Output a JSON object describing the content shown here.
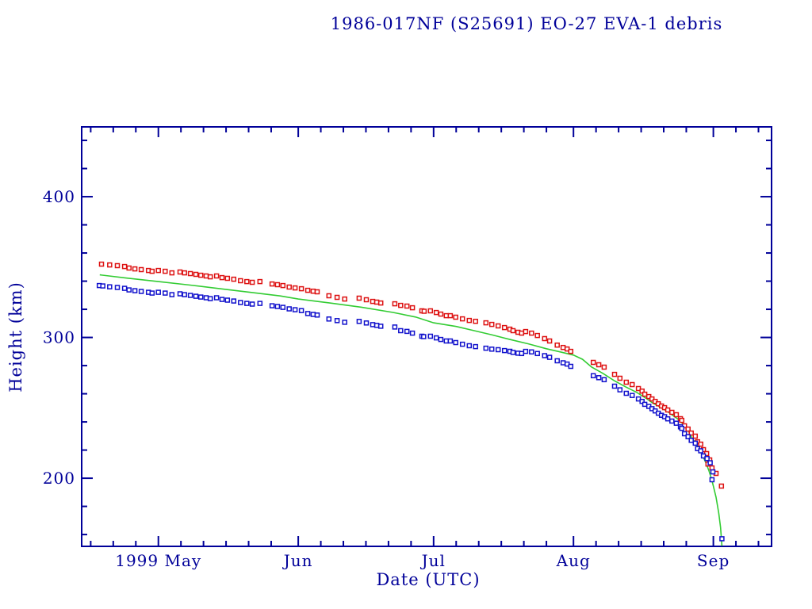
{
  "page": {
    "background": "#ffffff"
  },
  "header": {
    "title": "1986-017NF (S25691) EO-27 EVA-1 debris"
  },
  "chart_data": {
    "type": "scatter",
    "title": "1986-017NF (S25691) EO-27 EVA-1 debris",
    "xlabel": "Date (UTC)",
    "ylabel": "Height (km)",
    "grid": false,
    "legend": "none",
    "axis_color": "#000099",
    "background": "#ffffff",
    "x_axis": {
      "unit": "days since 1999 Apr 14 (UTC)",
      "range": [
        0,
        152.9
      ],
      "major_ticks": [
        {
          "day": 17,
          "label": "1999 May"
        },
        {
          "day": 48,
          "label": "Jun"
        },
        {
          "day": 78,
          "label": "Jul"
        },
        {
          "day": 109,
          "label": "Aug"
        },
        {
          "day": 140,
          "label": "Sep"
        }
      ],
      "minor_tick_days": [
        2,
        7,
        12,
        22,
        27,
        32,
        37,
        42,
        53,
        58,
        63,
        68,
        73,
        83,
        88,
        93,
        98,
        103,
        114,
        119,
        124,
        129,
        134,
        145,
        150
      ]
    },
    "y_axis": {
      "range": [
        151.6,
        449.6
      ],
      "major_ticks": [
        200,
        300,
        400
      ],
      "minor_ticks": [
        160,
        180,
        220,
        240,
        260,
        280,
        320,
        340,
        360,
        380,
        420,
        440
      ]
    },
    "series": [
      {
        "name": "green-line",
        "kind": "line",
        "color": "#33cc33",
        "points": [
          [
            4.0,
            344.5
          ],
          [
            10,
            342.2
          ],
          [
            17,
            339.7
          ],
          [
            24,
            337.2
          ],
          [
            31,
            334.5
          ],
          [
            38,
            331.8
          ],
          [
            44,
            329.5
          ],
          [
            48,
            327.3
          ],
          [
            55,
            324.5
          ],
          [
            62,
            321.5
          ],
          [
            69,
            317.8
          ],
          [
            74,
            314.5
          ],
          [
            78,
            310.4
          ],
          [
            83,
            307.8
          ],
          [
            87,
            304.8
          ],
          [
            91,
            301.8
          ],
          [
            95,
            298.5
          ],
          [
            99,
            295.5
          ],
          [
            103,
            292.0
          ],
          [
            106,
            289.8
          ],
          [
            109,
            287.5
          ],
          [
            111,
            284.5
          ],
          [
            113,
            279.0
          ],
          [
            115.5,
            274.5
          ],
          [
            118,
            269.4
          ],
          [
            120.5,
            265.0
          ],
          [
            123,
            261.0
          ],
          [
            125,
            257.0
          ],
          [
            126.5,
            253.5
          ],
          [
            128.5,
            250.0
          ],
          [
            130,
            247.0
          ],
          [
            131.5,
            243.5
          ],
          [
            132.5,
            241.2
          ],
          [
            133.5,
            237.5
          ],
          [
            134.5,
            233.5
          ],
          [
            135.3,
            228.2
          ],
          [
            136.2,
            224.5
          ],
          [
            137,
            220.0
          ],
          [
            137.7,
            215.5
          ],
          [
            138.3,
            211.3
          ],
          [
            139,
            205.5
          ],
          [
            139.6,
            199.5
          ],
          [
            140,
            194.4
          ],
          [
            140.6,
            186.5
          ],
          [
            141.2,
            175.2
          ],
          [
            141.6,
            165.0
          ],
          [
            141.9,
            152.0
          ]
        ]
      },
      {
        "name": "red-squares",
        "kind": "scatter",
        "marker": "open-square",
        "color": "#dd1111",
        "points": [
          [
            4.4,
            352.1
          ],
          [
            6.2,
            351.5
          ],
          [
            7.9,
            351.0
          ],
          [
            9.5,
            350.4
          ],
          [
            10.5,
            349.3
          ],
          [
            11.8,
            348.7
          ],
          [
            13.2,
            348.2
          ],
          [
            14.8,
            347.6
          ],
          [
            15.6,
            347.0
          ],
          [
            17.0,
            347.6
          ],
          [
            18.5,
            347.0
          ],
          [
            20.0,
            345.9
          ],
          [
            21.8,
            346.5
          ],
          [
            22.8,
            345.9
          ],
          [
            24.1,
            345.4
          ],
          [
            25.3,
            344.8
          ],
          [
            26.4,
            344.2
          ],
          [
            27.6,
            343.7
          ],
          [
            28.5,
            343.1
          ],
          [
            29.9,
            343.7
          ],
          [
            31.1,
            342.5
          ],
          [
            32.3,
            342.0
          ],
          [
            33.7,
            341.4
          ],
          [
            35.2,
            340.3
          ],
          [
            36.6,
            339.7
          ],
          [
            37.8,
            339.2
          ],
          [
            39.5,
            339.7
          ],
          [
            42.2,
            338.0
          ],
          [
            43.4,
            337.5
          ],
          [
            44.6,
            336.9
          ],
          [
            46.0,
            335.8
          ],
          [
            47.3,
            335.2
          ],
          [
            48.7,
            334.6
          ],
          [
            50.1,
            333.5
          ],
          [
            51.3,
            332.9
          ],
          [
            52.2,
            332.4
          ],
          [
            54.8,
            329.6
          ],
          [
            56.6,
            328.5
          ],
          [
            58.3,
            327.3
          ],
          [
            61.5,
            327.9
          ],
          [
            63.1,
            326.8
          ],
          [
            64.5,
            325.6
          ],
          [
            65.4,
            325.1
          ],
          [
            66.3,
            324.5
          ],
          [
            69.4,
            323.9
          ],
          [
            70.7,
            322.8
          ],
          [
            72.1,
            322.3
          ],
          [
            73.3,
            321.1
          ],
          [
            75.4,
            318.9
          ],
          [
            75.9,
            318.6
          ],
          [
            77.3,
            318.9
          ],
          [
            78.6,
            317.7
          ],
          [
            79.6,
            316.6
          ],
          [
            80.8,
            315.5
          ],
          [
            81.7,
            315.5
          ],
          [
            82.9,
            314.4
          ],
          [
            84.4,
            313.2
          ],
          [
            85.9,
            312.1
          ],
          [
            87.3,
            311.5
          ],
          [
            89.6,
            310.4
          ],
          [
            90.9,
            309.3
          ],
          [
            92.3,
            308.2
          ],
          [
            93.7,
            307.0
          ],
          [
            94.9,
            305.9
          ],
          [
            95.6,
            304.8
          ],
          [
            96.7,
            303.7
          ],
          [
            97.5,
            303.1
          ],
          [
            98.4,
            304.2
          ],
          [
            99.7,
            303.1
          ],
          [
            101.0,
            301.4
          ],
          [
            102.6,
            299.2
          ],
          [
            103.7,
            297.5
          ],
          [
            105.4,
            294.6
          ],
          [
            106.7,
            292.9
          ],
          [
            107.6,
            291.8
          ],
          [
            108.4,
            290.1
          ],
          [
            113.4,
            282.3
          ],
          [
            114.6,
            280.6
          ],
          [
            115.8,
            278.9
          ],
          [
            118.1,
            273.8
          ],
          [
            119.3,
            271.0
          ],
          [
            120.7,
            268.2
          ],
          [
            122.0,
            266.5
          ],
          [
            123.4,
            263.7
          ],
          [
            124.2,
            261.9
          ],
          [
            124.8,
            259.7
          ],
          [
            125.7,
            258.0
          ],
          [
            126.4,
            256.3
          ],
          [
            127.1,
            254.6
          ],
          [
            127.8,
            252.9
          ],
          [
            128.5,
            251.3
          ],
          [
            129.2,
            250.1
          ],
          [
            129.9,
            248.5
          ],
          [
            130.8,
            246.8
          ],
          [
            131.8,
            245.1
          ],
          [
            132.7,
            242.3
          ],
          [
            133.0,
            241.1
          ],
          [
            133.6,
            237.2
          ],
          [
            134.4,
            234.9
          ],
          [
            135.1,
            232.1
          ],
          [
            136.0,
            229.9
          ],
          [
            136.5,
            225.9
          ],
          [
            137.2,
            224.2
          ],
          [
            137.8,
            220.3
          ],
          [
            138.5,
            217.5
          ],
          [
            138.8,
            210.1
          ],
          [
            139.2,
            213.0
          ],
          [
            139.7,
            207.3
          ],
          [
            140.6,
            203.4
          ],
          [
            141.8,
            194.4
          ]
        ]
      },
      {
        "name": "blue-squares",
        "kind": "scatter",
        "marker": "open-square",
        "color": "#1111cc",
        "points": [
          [
            3.9,
            336.9
          ],
          [
            4.7,
            336.6
          ],
          [
            6.2,
            336.0
          ],
          [
            7.9,
            335.5
          ],
          [
            9.5,
            334.9
          ],
          [
            10.5,
            333.8
          ],
          [
            11.8,
            333.2
          ],
          [
            13.2,
            332.7
          ],
          [
            14.8,
            332.1
          ],
          [
            15.6,
            331.5
          ],
          [
            17.0,
            332.1
          ],
          [
            18.5,
            331.5
          ],
          [
            20.0,
            330.4
          ],
          [
            21.8,
            331.0
          ],
          [
            22.8,
            330.4
          ],
          [
            24.1,
            329.9
          ],
          [
            25.3,
            329.3
          ],
          [
            26.4,
            328.7
          ],
          [
            27.6,
            328.2
          ],
          [
            28.5,
            327.6
          ],
          [
            29.9,
            328.2
          ],
          [
            31.1,
            327.0
          ],
          [
            32.3,
            326.5
          ],
          [
            33.7,
            325.9
          ],
          [
            35.2,
            324.8
          ],
          [
            36.6,
            324.2
          ],
          [
            37.8,
            323.7
          ],
          [
            39.5,
            324.2
          ],
          [
            42.2,
            322.5
          ],
          [
            43.4,
            322.0
          ],
          [
            44.6,
            321.4
          ],
          [
            46.0,
            320.3
          ],
          [
            47.3,
            319.7
          ],
          [
            48.7,
            319.1
          ],
          [
            50.1,
            317.0
          ],
          [
            51.3,
            316.4
          ],
          [
            52.2,
            315.9
          ],
          [
            54.8,
            313.1
          ],
          [
            56.6,
            312.0
          ],
          [
            58.3,
            310.8
          ],
          [
            61.5,
            311.4
          ],
          [
            63.1,
            310.3
          ],
          [
            64.5,
            309.1
          ],
          [
            65.4,
            308.6
          ],
          [
            66.3,
            308.0
          ],
          [
            69.4,
            307.4
          ],
          [
            70.7,
            304.8
          ],
          [
            72.1,
            304.3
          ],
          [
            73.3,
            303.1
          ],
          [
            75.4,
            300.9
          ],
          [
            75.8,
            300.6
          ],
          [
            77.3,
            300.9
          ],
          [
            78.6,
            299.7
          ],
          [
            79.6,
            298.6
          ],
          [
            80.8,
            297.5
          ],
          [
            81.7,
            297.5
          ],
          [
            82.9,
            296.4
          ],
          [
            84.4,
            295.2
          ],
          [
            85.9,
            294.1
          ],
          [
            87.3,
            293.5
          ],
          [
            89.6,
            292.4
          ],
          [
            90.9,
            291.7
          ],
          [
            92.3,
            291.3
          ],
          [
            93.7,
            290.7
          ],
          [
            94.9,
            290.2
          ],
          [
            95.6,
            289.4
          ],
          [
            96.7,
            288.8
          ],
          [
            97.5,
            288.6
          ],
          [
            98.4,
            290.1
          ],
          [
            99.7,
            289.7
          ],
          [
            101.0,
            288.6
          ],
          [
            102.6,
            287.1
          ],
          [
            103.7,
            285.9
          ],
          [
            105.4,
            283.4
          ],
          [
            106.7,
            282.0
          ],
          [
            107.6,
            281.1
          ],
          [
            108.4,
            279.5
          ],
          [
            113.4,
            272.8
          ],
          [
            114.6,
            271.4
          ],
          [
            115.8,
            270.0
          ],
          [
            118.1,
            265.4
          ],
          [
            119.3,
            262.8
          ],
          [
            120.7,
            260.3
          ],
          [
            122.0,
            258.8
          ],
          [
            123.4,
            256.3
          ],
          [
            124.2,
            254.6
          ],
          [
            124.8,
            252.5
          ],
          [
            125.7,
            251.0
          ],
          [
            126.4,
            249.4
          ],
          [
            127.1,
            247.8
          ],
          [
            127.8,
            246.2
          ],
          [
            128.5,
            244.7
          ],
          [
            129.2,
            243.7
          ],
          [
            129.9,
            242.2
          ],
          [
            130.8,
            240.6
          ],
          [
            131.8,
            239.1
          ],
          [
            132.7,
            236.5
          ],
          [
            133.0,
            235.4
          ],
          [
            133.6,
            231.6
          ],
          [
            134.4,
            229.5
          ],
          [
            135.1,
            226.9
          ],
          [
            136.0,
            224.9
          ],
          [
            136.5,
            221.0
          ],
          [
            137.2,
            219.5
          ],
          [
            137.8,
            215.8
          ],
          [
            138.6,
            214.0
          ],
          [
            139.3,
            211.0
          ],
          [
            139.7,
            198.9
          ],
          [
            139.9,
            204.5
          ],
          [
            141.9,
            157.0
          ]
        ]
      }
    ]
  }
}
